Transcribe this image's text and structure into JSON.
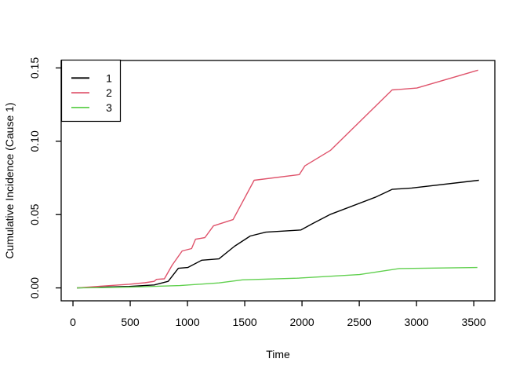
{
  "figure": {
    "background": "#ffffff",
    "axis_color": "#000000"
  },
  "chart_data": {
    "type": "line",
    "title": "",
    "xlabel": "Time",
    "ylabel": "Cumulative Incidence (Cause 1)",
    "xlim": [
      -103,
      3684
    ],
    "ylim": [
      -0.0088,
      0.1551
    ],
    "x_ticks": [
      0,
      500,
      1000,
      1500,
      2000,
      2500,
      3000,
      3500
    ],
    "x_tick_labels": [
      "0",
      "500",
      "1000",
      "1500",
      "2000",
      "2500",
      "3000",
      "3500"
    ],
    "y_ticks": [
      0,
      0.05,
      0.1,
      0.15
    ],
    "y_tick_labels": [
      "0.00",
      "0.05",
      "0.10",
      "0.15"
    ],
    "grid": false,
    "legend": {
      "position": "top-left",
      "entries": [
        {
          "label": "1",
          "color": "#000000"
        },
        {
          "label": "2",
          "color": "#DF536B"
        },
        {
          "label": "3",
          "color": "#61D04F"
        }
      ]
    },
    "series": [
      {
        "name": "1",
        "color": "#000000",
        "points": [
          [
            34,
            0
          ],
          [
            250,
            0.0005
          ],
          [
            491,
            0.001
          ],
          [
            709,
            0.002
          ],
          [
            832,
            0.0045
          ],
          [
            920,
            0.0134
          ],
          [
            1002,
            0.0139
          ],
          [
            1125,
            0.0189
          ],
          [
            1275,
            0.0198
          ],
          [
            1411,
            0.0284
          ],
          [
            1548,
            0.0354
          ],
          [
            1684,
            0.038
          ],
          [
            1991,
            0.0395
          ],
          [
            2093,
            0.0439
          ],
          [
            2250,
            0.0502
          ],
          [
            2639,
            0.0618
          ],
          [
            2787,
            0.0672
          ],
          [
            2957,
            0.0681
          ],
          [
            3545,
            0.0734
          ]
        ]
      },
      {
        "name": "2",
        "color": "#DF536B",
        "points": [
          [
            34,
            0
          ],
          [
            250,
            0.0012
          ],
          [
            491,
            0.0025
          ],
          [
            627,
            0.0035
          ],
          [
            709,
            0.0045
          ],
          [
            730,
            0.0058
          ],
          [
            798,
            0.0062
          ],
          [
            866,
            0.0155
          ],
          [
            954,
            0.0252
          ],
          [
            1036,
            0.0268
          ],
          [
            1070,
            0.0332
          ],
          [
            1152,
            0.0343
          ],
          [
            1227,
            0.0423
          ],
          [
            1398,
            0.0466
          ],
          [
            1582,
            0.0734
          ],
          [
            1977,
            0.0773
          ],
          [
            2025,
            0.0832
          ],
          [
            2250,
            0.0939
          ],
          [
            2787,
            0.135
          ],
          [
            3003,
            0.1363
          ],
          [
            3538,
            0.1485
          ]
        ]
      },
      {
        "name": "3",
        "color": "#61D04F",
        "points": [
          [
            34,
            0
          ],
          [
            491,
            0.0005
          ],
          [
            934,
            0.0016
          ],
          [
            1275,
            0.0034
          ],
          [
            1480,
            0.0055
          ],
          [
            1957,
            0.0066
          ],
          [
            2502,
            0.0091
          ],
          [
            2850,
            0.0132
          ],
          [
            3531,
            0.0139
          ]
        ]
      }
    ]
  }
}
